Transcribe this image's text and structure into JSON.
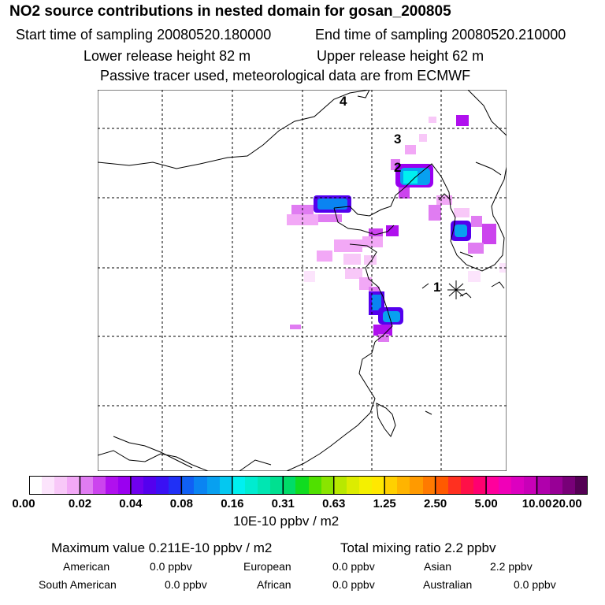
{
  "header": {
    "title": "NO2 source contributions in nested domain for gosan_200805",
    "start_time": "Start time of sampling 20080520.180000",
    "end_time": "End time of sampling 20080520.210000",
    "lower_height": "Lower release height   82 m",
    "upper_height": "Upper release height   62 m",
    "tracer_note": "Passive tracer used, meteorological data are from ECMWF"
  },
  "map": {
    "labels": [
      "1",
      "2",
      "3",
      "4"
    ],
    "colors": {
      "ocean_line": "#000000",
      "grid": "#000000"
    }
  },
  "colorbar": {
    "ticks": [
      "0.00",
      "0.02",
      "0.04",
      "0.08",
      "0.16",
      "0.31",
      "0.63",
      "1.25",
      "2.50",
      "5.00",
      "10.00",
      "20.00"
    ],
    "colors": [
      "#ffffff",
      "#fce4fc",
      "#f8c8f8",
      "#f2a8f6",
      "#e07cf2",
      "#cc44ee",
      "#b010ee",
      "#9a00f0",
      "#7000ee",
      "#5400ee",
      "#3a10f4",
      "#2030f6",
      "#1060f4",
      "#0a84f2",
      "#08a0f0",
      "#04c8f0",
      "#00f0f0",
      "#00ecd0",
      "#00e6b2",
      "#00e090",
      "#00dc68",
      "#10dc20",
      "#50e000",
      "#8ae400",
      "#b8e800",
      "#dcec00",
      "#f4f000",
      "#ffe800",
      "#ffd000",
      "#ffb400",
      "#ff9a00",
      "#ff7a00",
      "#ff5a00",
      "#ff3020",
      "#ff1048",
      "#ff0070",
      "#ff009c",
      "#f000b8",
      "#dc00c0",
      "#c800b8",
      "#b000ac",
      "#980096",
      "#780078",
      "#540054"
    ],
    "units": "10E-10 ppbv / m2"
  },
  "stats": {
    "max_value": "Maximum value  0.211E-10 ppbv / m2",
    "total_mixing": "Total mixing ratio       2.2 ppbv",
    "regions": [
      {
        "name": "American",
        "value": "0.0 ppbv"
      },
      {
        "name": "European",
        "value": "0.0 ppbv"
      },
      {
        "name": "Asian",
        "value": "2.2 ppbv"
      },
      {
        "name": "South American",
        "value": "0.0 ppbv"
      },
      {
        "name": "African",
        "value": "0.0 ppbv"
      },
      {
        "name": "Australian",
        "value": "0.0 ppbv"
      }
    ]
  }
}
